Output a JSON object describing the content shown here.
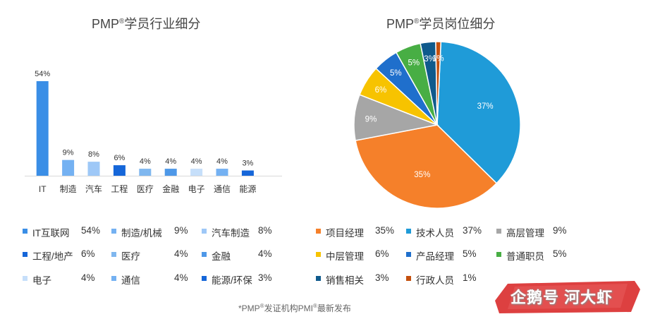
{
  "chart_data": [
    {
      "type": "bar",
      "title": "PMP",
      "title_sup": "®",
      "title_rest": "学员行业细分",
      "categories": [
        "IT",
        "制造",
        "汽车",
        "工程",
        "医疗",
        "金融",
        "电子",
        "通信",
        "能源"
      ],
      "values": [
        54,
        9,
        8,
        6,
        4,
        4,
        4,
        4,
        3
      ],
      "value_labels": [
        "54%",
        "9%",
        "8%",
        "6%",
        "4%",
        "4%",
        "4%",
        "4%",
        "3%"
      ],
      "colors": [
        "#3a8ee6",
        "#74b1f2",
        "#9ec8f7",
        "#1566d9",
        "#7fb7ef",
        "#4e98e8",
        "#c6dffa",
        "#74b1f2",
        "#1566d9"
      ],
      "ylim": [
        0,
        54
      ],
      "legend": [
        {
          "name": "IT互联网",
          "value": "54%",
          "color": "#3a8ee6"
        },
        {
          "name": "制造/机械",
          "value": "9%",
          "color": "#74b1f2"
        },
        {
          "name": "汽车制造",
          "value": "8%",
          "color": "#9ec8f7"
        },
        {
          "name": "工程/地产",
          "value": "6%",
          "color": "#1566d9"
        },
        {
          "name": "医疗",
          "value": "4%",
          "color": "#7fb7ef"
        },
        {
          "name": "金融",
          "value": "4%",
          "color": "#4e98e8"
        },
        {
          "name": "电子",
          "value": "4%",
          "color": "#c6dffa"
        },
        {
          "name": "通信",
          "value": "4%",
          "color": "#74b1f2"
        },
        {
          "name": "能源/环保",
          "value": "3%",
          "color": "#1566d9"
        }
      ]
    },
    {
      "type": "pie",
      "title": "PMP",
      "title_sup": "®",
      "title_rest": "学员岗位细分",
      "slices": [
        {
          "name": "技术人员",
          "value": 37,
          "label": "37%",
          "color": "#1f9bd8"
        },
        {
          "name": "项目经理",
          "value": 35,
          "label": "35%",
          "color": "#f5802a"
        },
        {
          "name": "高层管理",
          "value": 9,
          "label": "9%",
          "color": "#a6a6a6"
        },
        {
          "name": "中层管理",
          "value": 6,
          "label": "6%",
          "color": "#f7c300"
        },
        {
          "name": "产品经理",
          "value": 5,
          "label": "5%",
          "color": "#1f6fcc"
        },
        {
          "name": "普通职员",
          "value": 5,
          "label": "5%",
          "color": "#48ae44"
        },
        {
          "name": "销售相关",
          "value": 3,
          "label": "3%",
          "color": "#0f5a8c"
        },
        {
          "name": "行政人员",
          "value": 1,
          "label": "1%",
          "color": "#c4500e"
        }
      ],
      "legend": [
        {
          "name": "项目经理",
          "value": "35%",
          "color": "#f5802a"
        },
        {
          "name": "技术人员",
          "value": "37%",
          "color": "#1f9bd8"
        },
        {
          "name": "高层管理",
          "value": "9%",
          "color": "#a6a6a6"
        },
        {
          "name": "中层管理",
          "value": "6%",
          "color": "#f7c300"
        },
        {
          "name": "产品经理",
          "value": "5%",
          "color": "#1f6fcc"
        },
        {
          "name": "普通职员",
          "value": "5%",
          "color": "#48ae44"
        },
        {
          "name": "销售相关",
          "value": "3%",
          "color": "#0f5a8c"
        },
        {
          "name": "行政人员",
          "value": "1%",
          "color": "#c4500e"
        }
      ]
    }
  ],
  "footer": {
    "a": "*PMP",
    "sup1": "®",
    "b": "发证机构PMI",
    "sup2": "®",
    "c": "最新发布"
  },
  "watermark": "企鹅号 河大虾"
}
